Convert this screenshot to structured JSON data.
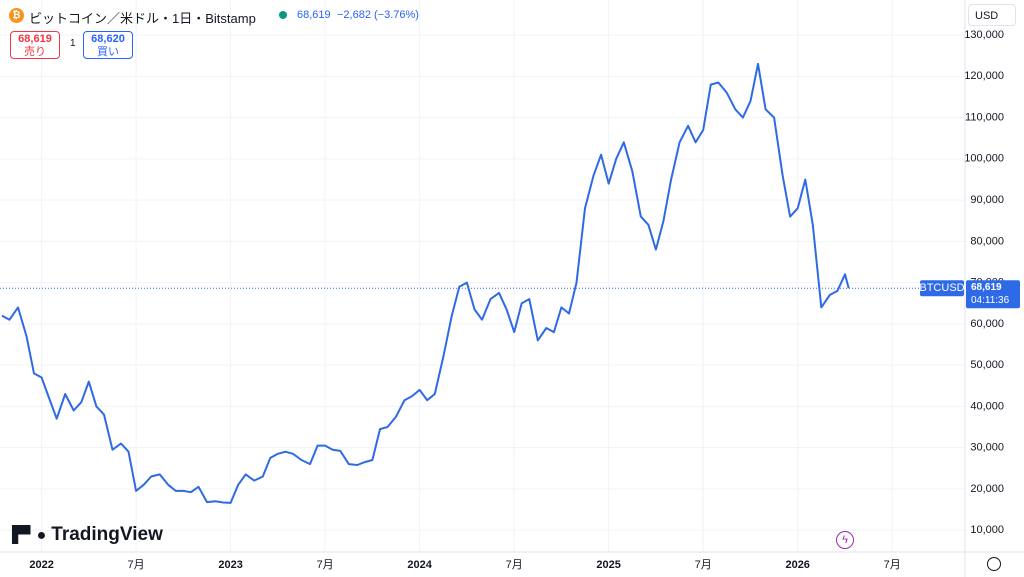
{
  "chart_data": {
    "type": "line",
    "title": "ビットコイン／米ドル・1日・Bitstamp",
    "x": [
      2021.79,
      2021.83,
      2021.875,
      2021.92,
      2021.96,
      2022.0,
      2022.04,
      2022.08,
      2022.125,
      2022.17,
      2022.21,
      2022.25,
      2022.29,
      2022.33,
      2022.375,
      2022.42,
      2022.46,
      2022.5,
      2022.54,
      2022.58,
      2022.625,
      2022.67,
      2022.71,
      2022.75,
      2022.79,
      2022.83,
      2022.875,
      2022.92,
      2022.96,
      2023.0,
      2023.04,
      2023.08,
      2023.125,
      2023.17,
      2023.21,
      2023.25,
      2023.29,
      2023.33,
      2023.375,
      2023.42,
      2023.46,
      2023.5,
      2023.54,
      2023.58,
      2023.625,
      2023.67,
      2023.71,
      2023.75,
      2023.79,
      2023.83,
      2023.875,
      2023.92,
      2023.96,
      2024.0,
      2024.04,
      2024.08,
      2024.125,
      2024.17,
      2024.21,
      2024.25,
      2024.29,
      2024.33,
      2024.375,
      2024.42,
      2024.46,
      2024.5,
      2024.54,
      2024.58,
      2024.625,
      2024.67,
      2024.71,
      2024.75,
      2024.79,
      2024.83,
      2024.875,
      2024.92,
      2024.96,
      2025.0,
      2025.04,
      2025.08,
      2025.125,
      2025.17,
      2025.21,
      2025.25,
      2025.29,
      2025.33,
      2025.375,
      2025.42,
      2025.46,
      2025.5,
      2025.54,
      2025.58,
      2025.625,
      2025.67,
      2025.71,
      2025.75,
      2025.79,
      2025.83,
      2025.875,
      2025.92,
      2025.96,
      2026.0,
      2026.04,
      2026.08,
      2026.125,
      2026.17,
      2026.21,
      2026.25,
      2026.27
    ],
    "series": [
      {
        "name": "BTCUSD",
        "color": "#2f6ae6",
        "values": [
          62000,
          61000,
          64000,
          57000,
          48000,
          47000,
          42000,
          37000,
          43000,
          39000,
          41000,
          46000,
          40000,
          38000,
          29500,
          31000,
          29000,
          19500,
          21000,
          23000,
          23500,
          21000,
          19500,
          19500,
          19200,
          20500,
          16800,
          17000,
          16700,
          16600,
          21000,
          23500,
          22000,
          23000,
          27500,
          28500,
          29000,
          28500,
          27000,
          26000,
          30500,
          30500,
          29500,
          29200,
          26000,
          25800,
          26500,
          27000,
          34500,
          35000,
          37500,
          41500,
          42500,
          44000,
          41500,
          43000,
          52000,
          62000,
          69000,
          70000,
          63500,
          61000,
          66000,
          67500,
          63500,
          58000,
          65000,
          66000,
          56000,
          59000,
          58000,
          64000,
          62500,
          70000,
          88000,
          96000,
          101000,
          94000,
          100000,
          104000,
          97000,
          86000,
          84000,
          78000,
          85000,
          95000,
          104000,
          108000,
          104000,
          107000,
          118000,
          118500,
          116000,
          112000,
          110000,
          114000,
          123000,
          112000,
          110000,
          96000,
          86000,
          88000,
          95000,
          84000,
          64000,
          67000,
          68000,
          72000,
          68619
        ]
      }
    ],
    "xlim": [
      2021.78,
      2026.885
    ],
    "xticks": [
      2022,
      {
        "value": 2022.5,
        "label": "7月"
      },
      2023,
      {
        "value": 2023.5,
        "label": "7月"
      },
      2024,
      {
        "value": 2024.5,
        "label": "7月"
      },
      2025,
      {
        "value": 2025.5,
        "label": "7月"
      },
      2026,
      {
        "value": 2026.5,
        "label": "7月"
      }
    ],
    "ylim": [
      4700,
      138500
    ],
    "yticks": [
      {
        "value": 10000,
        "label": "10,000"
      },
      {
        "value": 20000,
        "label": "20,000"
      },
      {
        "value": 30000,
        "label": "30,000"
      },
      {
        "value": 40000,
        "label": "40,000"
      },
      {
        "value": 50000,
        "label": "50,000"
      },
      {
        "value": 60000,
        "label": "60,000"
      },
      {
        "value": 70000,
        "label": "70,000"
      },
      {
        "value": 80000,
        "label": "80,000"
      },
      {
        "value": 90000,
        "label": "90,000"
      },
      {
        "value": 100000,
        "label": "100,000"
      },
      {
        "value": 110000,
        "label": "110,000"
      },
      {
        "value": 120000,
        "label": "120,000"
      },
      {
        "value": 130000,
        "label": "130,000"
      }
    ],
    "grid": true
  },
  "ui": {
    "price": "68,619",
    "change": "−2,682 (−3.76%)",
    "sell_price": "68,619",
    "sell_label": "売り",
    "spread": "1",
    "buy_price": "68,620",
    "buy_label": "買い",
    "currency": "USD",
    "last_price_label": "68,619",
    "countdown": "04:11:36",
    "logo": "TradingView"
  }
}
